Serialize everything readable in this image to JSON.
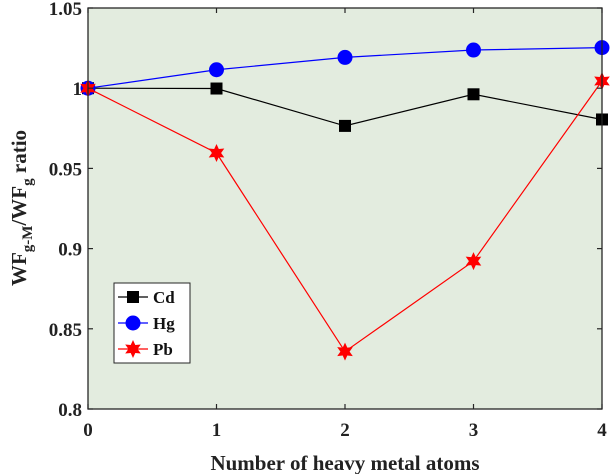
{
  "chart_data": {
    "type": "line",
    "title": "",
    "xlabel": "Number of heavy metal atoms",
    "ylabel": {
      "main1": "WF",
      "sub1": "g-M",
      "main2": "/WF",
      "sub2": "g",
      "tail": " ratio"
    },
    "x": [
      0,
      1,
      2,
      3,
      4
    ],
    "x_ticks": [
      "0",
      "1",
      "2",
      "3",
      "4"
    ],
    "y_ticks": [
      "0.8",
      "0.85",
      "0.9",
      "0.95",
      "1",
      "1.05"
    ],
    "y_tick_values": [
      0.8,
      0.85,
      0.9,
      0.95,
      1.0,
      1.05
    ],
    "xlim": [
      0,
      4
    ],
    "ylim": [
      0.8,
      1.05
    ],
    "grid": false,
    "legend_position": "lower-left",
    "plot_background": "#e3ecdf",
    "series": [
      {
        "name": "Cd",
        "color": "#000000",
        "marker": "square",
        "values": [
          1.0,
          0.9998,
          0.9765,
          0.9962,
          0.9805
        ]
      },
      {
        "name": "Hg",
        "color": "#0000ff",
        "marker": "circle",
        "values": [
          1.0,
          1.0115,
          1.0192,
          1.0238,
          1.0253
        ]
      },
      {
        "name": "Pb",
        "color": "#ff0000",
        "marker": "hexagram",
        "values": [
          1.0,
          0.9596,
          0.8358,
          0.8922,
          1.0045
        ]
      }
    ]
  }
}
